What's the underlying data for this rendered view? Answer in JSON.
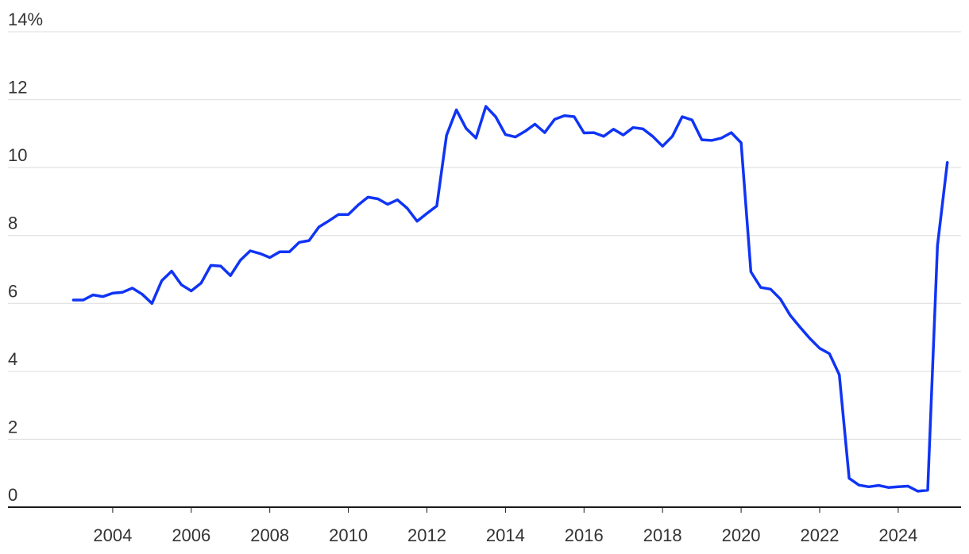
{
  "chart_data": {
    "type": "line",
    "title": "",
    "xlabel": "",
    "ylabel": "",
    "y_unit_suffix": "%",
    "ylim": [
      0,
      14
    ],
    "y_ticks": [
      0,
      2,
      4,
      6,
      8,
      10,
      12,
      14
    ],
    "y_tick_labels": [
      "0",
      "2",
      "4",
      "6",
      "8",
      "10",
      "12",
      "14%"
    ],
    "xlim": [
      2002.0,
      2025.6
    ],
    "x_ticks": [
      2004,
      2006,
      2008,
      2010,
      2012,
      2014,
      2016,
      2018,
      2020,
      2022,
      2024
    ],
    "x_tick_labels": [
      "2004",
      "2006",
      "2008",
      "2010",
      "2012",
      "2014",
      "2016",
      "2018",
      "2020",
      "2022",
      "2024"
    ],
    "grid": true,
    "legend": "none",
    "series": [
      {
        "color": "#1034f5",
        "points": [
          [
            2003.0,
            6.1
          ],
          [
            2003.25,
            6.1
          ],
          [
            2003.5,
            6.25
          ],
          [
            2003.75,
            6.2
          ],
          [
            2004.0,
            6.3
          ],
          [
            2004.25,
            6.33
          ],
          [
            2004.5,
            6.45
          ],
          [
            2004.75,
            6.27
          ],
          [
            2005.0,
            6.0
          ],
          [
            2005.25,
            6.67
          ],
          [
            2005.5,
            6.95
          ],
          [
            2005.75,
            6.55
          ],
          [
            2006.0,
            6.37
          ],
          [
            2006.25,
            6.6
          ],
          [
            2006.5,
            7.12
          ],
          [
            2006.75,
            7.1
          ],
          [
            2007.0,
            6.82
          ],
          [
            2007.25,
            7.27
          ],
          [
            2007.5,
            7.55
          ],
          [
            2007.75,
            7.47
          ],
          [
            2008.0,
            7.35
          ],
          [
            2008.25,
            7.52
          ],
          [
            2008.5,
            7.52
          ],
          [
            2008.75,
            7.8
          ],
          [
            2009.0,
            7.85
          ],
          [
            2009.25,
            8.25
          ],
          [
            2009.5,
            8.43
          ],
          [
            2009.75,
            8.62
          ],
          [
            2010.0,
            8.62
          ],
          [
            2010.25,
            8.9
          ],
          [
            2010.5,
            9.13
          ],
          [
            2010.75,
            9.08
          ],
          [
            2011.0,
            8.92
          ],
          [
            2011.25,
            9.05
          ],
          [
            2011.5,
            8.8
          ],
          [
            2011.75,
            8.42
          ],
          [
            2012.0,
            8.65
          ],
          [
            2012.25,
            8.87
          ],
          [
            2012.5,
            10.95
          ],
          [
            2012.75,
            11.7
          ],
          [
            2013.0,
            11.15
          ],
          [
            2013.25,
            10.87
          ],
          [
            2013.5,
            11.8
          ],
          [
            2013.75,
            11.5
          ],
          [
            2014.0,
            10.97
          ],
          [
            2014.25,
            10.9
          ],
          [
            2014.5,
            11.07
          ],
          [
            2014.75,
            11.28
          ],
          [
            2015.0,
            11.03
          ],
          [
            2015.25,
            11.42
          ],
          [
            2015.5,
            11.53
          ],
          [
            2015.75,
            11.5
          ],
          [
            2016.0,
            11.02
          ],
          [
            2016.25,
            11.03
          ],
          [
            2016.5,
            10.92
          ],
          [
            2016.75,
            11.13
          ],
          [
            2017.0,
            10.96
          ],
          [
            2017.25,
            11.18
          ],
          [
            2017.5,
            11.14
          ],
          [
            2017.75,
            10.92
          ],
          [
            2018.0,
            10.63
          ],
          [
            2018.25,
            10.92
          ],
          [
            2018.5,
            11.5
          ],
          [
            2018.75,
            11.4
          ],
          [
            2019.0,
            10.82
          ],
          [
            2019.25,
            10.8
          ],
          [
            2019.5,
            10.87
          ],
          [
            2019.75,
            11.03
          ],
          [
            2020.0,
            10.73
          ],
          [
            2020.25,
            6.93
          ],
          [
            2020.5,
            6.47
          ],
          [
            2020.75,
            6.42
          ],
          [
            2021.0,
            6.13
          ],
          [
            2021.25,
            5.65
          ],
          [
            2021.5,
            5.3
          ],
          [
            2021.75,
            4.97
          ],
          [
            2022.0,
            4.68
          ],
          [
            2022.25,
            4.52
          ],
          [
            2022.5,
            3.9
          ],
          [
            2022.75,
            0.85
          ],
          [
            2023.0,
            0.65
          ],
          [
            2023.25,
            0.6
          ],
          [
            2023.5,
            0.64
          ],
          [
            2023.75,
            0.58
          ],
          [
            2024.0,
            0.6
          ],
          [
            2024.25,
            0.62
          ],
          [
            2024.5,
            0.47
          ],
          [
            2024.75,
            0.5
          ],
          [
            2025.0,
            7.7
          ],
          [
            2025.25,
            10.15
          ]
        ]
      }
    ]
  }
}
